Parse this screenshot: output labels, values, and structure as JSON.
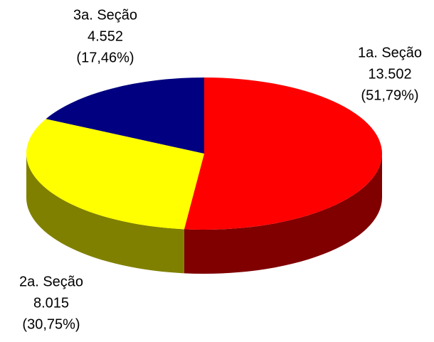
{
  "chart_data": {
    "type": "pie3d",
    "categories": [
      "1a. Seção",
      "2a. Seção",
      "3a. Seção"
    ],
    "values": [
      13502,
      8015,
      4552
    ],
    "value_labels": [
      "13.502",
      "8.015",
      "4.552"
    ],
    "percents": [
      51.79,
      30.75,
      17.46
    ],
    "percent_labels": [
      "(51,79%)",
      "(30,75%)",
      "(17,46%)"
    ],
    "colors": [
      "#ff0000",
      "#ffff00",
      "#000080"
    ],
    "side_colors": [
      "#800000",
      "#808000",
      "#000040"
    ]
  }
}
